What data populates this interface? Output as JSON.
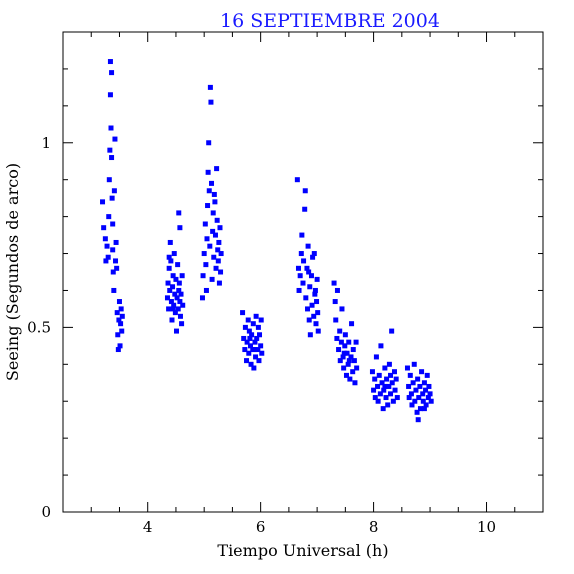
{
  "chart_data": {
    "type": "scatter",
    "title": "16 SEPTIEMBRE 2004",
    "xlabel": "Tiempo Universal (h)",
    "ylabel": "Seeing (Segundos de arco)",
    "xlim": [
      2.5,
      11.0
    ],
    "ylim": [
      0,
      1.3
    ],
    "xticks": [
      4,
      6,
      8,
      10
    ],
    "yticks": [
      0,
      0.5,
      1
    ],
    "ytick_labels": [
      "0",
      "0.5",
      "1"
    ],
    "marker_color": "#0000ff",
    "grid": false,
    "series": [
      {
        "values": [
          [
            3.2,
            0.84
          ],
          [
            3.22,
            0.77
          ],
          [
            3.25,
            0.74
          ],
          [
            3.26,
            0.68
          ],
          [
            3.28,
            0.72
          ],
          [
            3.3,
            0.69
          ],
          [
            3.31,
            0.8
          ],
          [
            3.32,
            0.9
          ],
          [
            3.33,
            0.98
          ],
          [
            3.34,
            1.13
          ],
          [
            3.34,
            1.22
          ],
          [
            3.35,
            1.04
          ],
          [
            3.36,
            1.19
          ],
          [
            3.36,
            0.96
          ],
          [
            3.37,
            0.85
          ],
          [
            3.38,
            0.78
          ],
          [
            3.38,
            0.71
          ],
          [
            3.39,
            0.65
          ],
          [
            3.4,
            0.6
          ],
          [
            3.41,
            0.87
          ],
          [
            3.42,
            1.01
          ],
          [
            3.43,
            0.68
          ],
          [
            3.44,
            0.73
          ],
          [
            3.45,
            0.66
          ],
          [
            3.46,
            0.54
          ],
          [
            3.47,
            0.48
          ],
          [
            3.48,
            0.44
          ],
          [
            3.49,
            0.52
          ],
          [
            3.5,
            0.57
          ],
          [
            3.51,
            0.45
          ],
          [
            3.52,
            0.51
          ],
          [
            3.53,
            0.55
          ],
          [
            3.54,
            0.49
          ],
          [
            3.55,
            0.53
          ],
          [
            4.35,
            0.58
          ],
          [
            4.36,
            0.62
          ],
          [
            4.37,
            0.55
          ],
          [
            4.38,
            0.66
          ],
          [
            4.39,
            0.6
          ],
          [
            4.4,
            0.73
          ],
          [
            4.41,
            0.68
          ],
          [
            4.42,
            0.57
          ],
          [
            4.43,
            0.52
          ],
          [
            4.44,
            0.61
          ],
          [
            4.45,
            0.64
          ],
          [
            4.46,
            0.56
          ],
          [
            4.47,
            0.7
          ],
          [
            4.48,
            0.59
          ],
          [
            4.49,
            0.54
          ],
          [
            4.5,
            0.63
          ],
          [
            4.51,
            0.49
          ],
          [
            4.52,
            0.58
          ],
          [
            4.53,
            0.67
          ],
          [
            4.54,
            0.55
          ],
          [
            4.55,
            0.6
          ],
          [
            4.56,
            0.62
          ],
          [
            4.57,
            0.57
          ],
          [
            4.58,
            0.53
          ],
          [
            4.59,
            0.59
          ],
          [
            4.6,
            0.51
          ],
          [
            4.61,
            0.64
          ],
          [
            4.62,
            0.56
          ],
          [
            4.55,
            0.81
          ],
          [
            4.57,
            0.77
          ],
          [
            4.38,
            0.69
          ],
          [
            4.45,
            0.55
          ],
          [
            4.97,
            0.58
          ],
          [
            4.98,
            0.64
          ],
          [
            5.0,
            0.7
          ],
          [
            5.02,
            0.78
          ],
          [
            5.03,
            0.67
          ],
          [
            5.05,
            0.74
          ],
          [
            5.06,
            0.83
          ],
          [
            5.07,
            0.92
          ],
          [
            5.08,
            1.0
          ],
          [
            5.09,
            0.87
          ],
          [
            5.1,
            0.72
          ],
          [
            5.11,
            1.15
          ],
          [
            5.12,
            1.11
          ],
          [
            5.13,
            0.89
          ],
          [
            5.14,
            0.63
          ],
          [
            5.15,
            0.76
          ],
          [
            5.16,
            0.81
          ],
          [
            5.17,
            0.69
          ],
          [
            5.18,
            0.86
          ],
          [
            5.2,
            0.75
          ],
          [
            5.21,
            0.66
          ],
          [
            5.22,
            0.93
          ],
          [
            5.23,
            0.79
          ],
          [
            5.24,
            0.71
          ],
          [
            5.25,
            0.68
          ],
          [
            5.26,
            0.73
          ],
          [
            5.27,
            0.62
          ],
          [
            5.28,
            0.77
          ],
          [
            5.29,
            0.65
          ],
          [
            5.3,
            0.7
          ],
          [
            5.04,
            0.6
          ],
          [
            5.19,
            0.84
          ],
          [
            5.68,
            0.54
          ],
          [
            5.7,
            0.47
          ],
          [
            5.72,
            0.44
          ],
          [
            5.73,
            0.5
          ],
          [
            5.75,
            0.41
          ],
          [
            5.76,
            0.46
          ],
          [
            5.78,
            0.52
          ],
          [
            5.79,
            0.43
          ],
          [
            5.8,
            0.49
          ],
          [
            5.82,
            0.45
          ],
          [
            5.83,
            0.4
          ],
          [
            5.84,
            0.48
          ],
          [
            5.86,
            0.44
          ],
          [
            5.87,
            0.51
          ],
          [
            5.88,
            0.39
          ],
          [
            5.9,
            0.46
          ],
          [
            5.91,
            0.42
          ],
          [
            5.92,
            0.53
          ],
          [
            5.93,
            0.47
          ],
          [
            5.95,
            0.44
          ],
          [
            5.96,
            0.5
          ],
          [
            5.97,
            0.41
          ],
          [
            5.98,
            0.48
          ],
          [
            6.0,
            0.45
          ],
          [
            6.01,
            0.52
          ],
          [
            6.02,
            0.43
          ],
          [
            5.81,
            0.47
          ],
          [
            5.89,
            0.44
          ],
          [
            6.65,
            0.9
          ],
          [
            6.67,
            0.66
          ],
          [
            6.68,
            0.6
          ],
          [
            6.7,
            0.64
          ],
          [
            6.72,
            0.7
          ],
          [
            6.73,
            0.75
          ],
          [
            6.75,
            0.62
          ],
          [
            6.76,
            0.68
          ],
          [
            6.78,
            0.82
          ],
          [
            6.79,
            0.87
          ],
          [
            6.8,
            0.58
          ],
          [
            6.82,
            0.66
          ],
          [
            6.83,
            0.55
          ],
          [
            6.84,
            0.72
          ],
          [
            6.86,
            0.52
          ],
          [
            6.87,
            0.61
          ],
          [
            6.88,
            0.48
          ],
          [
            6.9,
            0.64
          ],
          [
            6.91,
            0.56
          ],
          [
            6.92,
            0.69
          ],
          [
            6.94,
            0.53
          ],
          [
            6.95,
            0.7
          ],
          [
            6.96,
            0.59
          ],
          [
            6.98,
            0.51
          ],
          [
            6.99,
            0.57
          ],
          [
            7.0,
            0.63
          ],
          [
            7.01,
            0.54
          ],
          [
            7.02,
            0.49
          ],
          [
            6.85,
            0.65
          ],
          [
            6.97,
            0.6
          ],
          [
            7.3,
            0.62
          ],
          [
            7.32,
            0.57
          ],
          [
            7.33,
            0.52
          ],
          [
            7.35,
            0.47
          ],
          [
            7.36,
            0.6
          ],
          [
            7.38,
            0.44
          ],
          [
            7.4,
            0.49
          ],
          [
            7.41,
            0.41
          ],
          [
            7.43,
            0.46
          ],
          [
            7.44,
            0.55
          ],
          [
            7.46,
            0.42
          ],
          [
            7.47,
            0.39
          ],
          [
            7.49,
            0.45
          ],
          [
            7.5,
            0.48
          ],
          [
            7.52,
            0.37
          ],
          [
            7.53,
            0.43
          ],
          [
            7.55,
            0.4
          ],
          [
            7.56,
            0.46
          ],
          [
            7.58,
            0.36
          ],
          [
            7.6,
            0.42
          ],
          [
            7.61,
            0.51
          ],
          [
            7.63,
            0.38
          ],
          [
            7.64,
            0.44
          ],
          [
            7.66,
            0.41
          ],
          [
            7.67,
            0.35
          ],
          [
            7.69,
            0.46
          ],
          [
            7.7,
            0.39
          ],
          [
            7.48,
            0.43
          ],
          [
            7.57,
            0.41
          ],
          [
            7.98,
            0.38
          ],
          [
            8.0,
            0.33
          ],
          [
            8.02,
            0.36
          ],
          [
            8.03,
            0.31
          ],
          [
            8.05,
            0.42
          ],
          [
            8.07,
            0.34
          ],
          [
            8.08,
            0.3
          ],
          [
            8.1,
            0.37
          ],
          [
            8.12,
            0.32
          ],
          [
            8.13,
            0.45
          ],
          [
            8.15,
            0.35
          ],
          [
            8.17,
            0.28
          ],
          [
            8.18,
            0.33
          ],
          [
            8.2,
            0.39
          ],
          [
            8.22,
            0.31
          ],
          [
            8.23,
            0.36
          ],
          [
            8.25,
            0.29
          ],
          [
            8.27,
            0.34
          ],
          [
            8.28,
            0.4
          ],
          [
            8.3,
            0.32
          ],
          [
            8.32,
            0.49
          ],
          [
            8.33,
            0.35
          ],
          [
            8.35,
            0.3
          ],
          [
            8.37,
            0.38
          ],
          [
            8.38,
            0.33
          ],
          [
            8.4,
            0.36
          ],
          [
            8.42,
            0.31
          ],
          [
            8.2,
            0.34
          ],
          [
            8.3,
            0.37
          ],
          [
            8.6,
            0.39
          ],
          [
            8.62,
            0.34
          ],
          [
            8.63,
            0.31
          ],
          [
            8.65,
            0.37
          ],
          [
            8.67,
            0.32
          ],
          [
            8.68,
            0.29
          ],
          [
            8.7,
            0.35
          ],
          [
            8.72,
            0.4
          ],
          [
            8.73,
            0.3
          ],
          [
            8.75,
            0.33
          ],
          [
            8.77,
            0.27
          ],
          [
            8.78,
            0.36
          ],
          [
            8.8,
            0.31
          ],
          [
            8.82,
            0.34
          ],
          [
            8.83,
            0.28
          ],
          [
            8.85,
            0.38
          ],
          [
            8.87,
            0.32
          ],
          [
            8.88,
            0.3
          ],
          [
            8.9,
            0.35
          ],
          [
            8.92,
            0.33
          ],
          [
            8.93,
            0.29
          ],
          [
            8.95,
            0.37
          ],
          [
            8.97,
            0.31
          ],
          [
            8.98,
            0.34
          ],
          [
            9.0,
            0.32
          ],
          [
            9.02,
            0.3
          ],
          [
            8.79,
            0.25
          ],
          [
            8.9,
            0.28
          ]
        ]
      }
    ]
  }
}
